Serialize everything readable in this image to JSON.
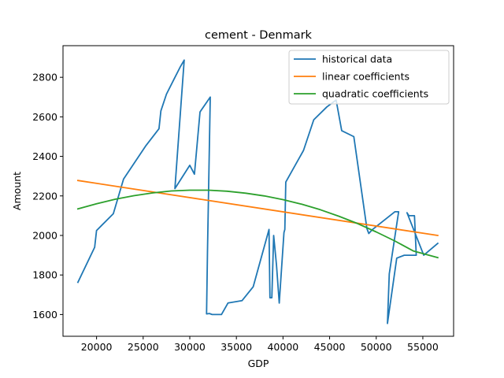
{
  "chart_data": {
    "type": "line",
    "title": "cement - Denmark",
    "xlabel": "GDP",
    "ylabel": "Amount",
    "xlim": [
      16400,
      58300
    ],
    "ylim": [
      1490,
      2960
    ],
    "xticks": [
      20000,
      25000,
      30000,
      35000,
      40000,
      45000,
      50000,
      55000
    ],
    "yticks": [
      1600,
      1800,
      2000,
      2200,
      2400,
      2600,
      2800
    ],
    "grid": false,
    "legend_position": "top-right",
    "series": [
      {
        "name": "historical data",
        "color": "#1f77b4",
        "x": [
          18000,
          19800,
          20000,
          21800,
          22900,
          25300,
          26700,
          26900,
          27500,
          28300,
          29000,
          29400,
          28400,
          30000,
          30500,
          31100,
          32200,
          31900,
          31800,
          32100,
          32400,
          33400,
          34100,
          35600,
          36800,
          38500,
          38600,
          38800,
          39000,
          39300,
          39600,
          40100,
          40200,
          40300,
          42200,
          43300,
          44700,
          45700,
          46300,
          47600,
          49000,
          49200,
          49600,
          52000,
          52400,
          51400,
          51200,
          52200,
          53000,
          54300,
          54100,
          53500,
          53300,
          55100,
          56600
        ],
        "y": [
          1763,
          1940,
          2025,
          2110,
          2285,
          2455,
          2540,
          2630,
          2715,
          2790,
          2855,
          2887,
          2237,
          2355,
          2310,
          2625,
          2700,
          1925,
          1603,
          1605,
          1600,
          1600,
          1658,
          1670,
          1740,
          2030,
          1685,
          1685,
          2000,
          1850,
          1658,
          2015,
          2030,
          2270,
          2430,
          2585,
          2650,
          2685,
          2530,
          2500,
          2035,
          2010,
          2030,
          2120,
          2120,
          1805,
          1555,
          1885,
          1900,
          1900,
          2100,
          2100,
          2115,
          1900,
          1960
        ]
      },
      {
        "name": "linear coefficients",
        "color": "#ff7f0e",
        "x": [
          18000,
          56600
        ],
        "y": [
          2278,
          2000
        ]
      },
      {
        "name": "quadratic coefficients",
        "color": "#2ca02c",
        "x": [
          18000,
          20000,
          22000,
          24000,
          26000,
          28000,
          30000,
          32000,
          34000,
          36000,
          38000,
          40000,
          42000,
          44000,
          46000,
          48000,
          50000,
          52000,
          54000,
          56600
        ],
        "y": [
          2134,
          2160,
          2183,
          2201,
          2215,
          2225,
          2229,
          2229,
          2224,
          2214,
          2200,
          2181,
          2158,
          2130,
          2097,
          2060,
          2018,
          1972,
          1921,
          1888
        ]
      }
    ]
  }
}
